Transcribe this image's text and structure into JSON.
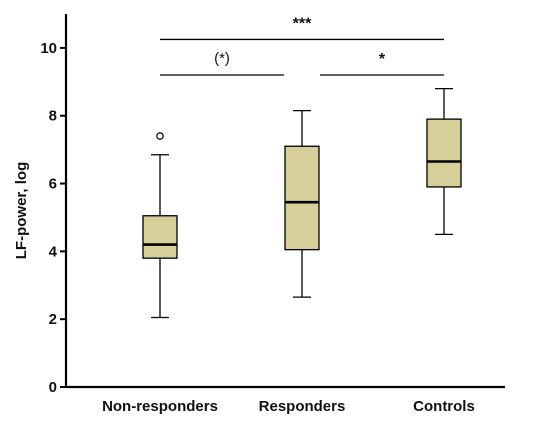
{
  "chart_data": {
    "type": "box",
    "ylabel": "LF-power, log",
    "xlabel": "",
    "ylim": [
      0,
      11
    ],
    "yticks": [
      0,
      2,
      4,
      6,
      8,
      10
    ],
    "grid": false,
    "box_fill": "#d6cf9a",
    "categories": [
      "Non-responders",
      "Responders",
      "Controls"
    ],
    "boxes": [
      {
        "category": "Non-responders",
        "whisker_low": 2.05,
        "q1": 3.8,
        "median": 4.2,
        "q3": 5.05,
        "whisker_high": 6.85,
        "outliers": [
          7.4
        ]
      },
      {
        "category": "Responders",
        "whisker_low": 2.65,
        "q1": 4.05,
        "median": 5.45,
        "q3": 7.1,
        "whisker_high": 8.15,
        "outliers": []
      },
      {
        "category": "Controls",
        "whisker_low": 4.5,
        "q1": 5.9,
        "median": 6.65,
        "q3": 7.9,
        "whisker_high": 8.8,
        "outliers": []
      }
    ],
    "significance": [
      {
        "from": 0,
        "to": 2,
        "y": 10.25,
        "label": "***"
      },
      {
        "from": 0,
        "to": 1,
        "y": 9.2,
        "label": "(*)"
      },
      {
        "from": 1,
        "to": 2,
        "y": 9.2,
        "label": "*"
      }
    ]
  }
}
